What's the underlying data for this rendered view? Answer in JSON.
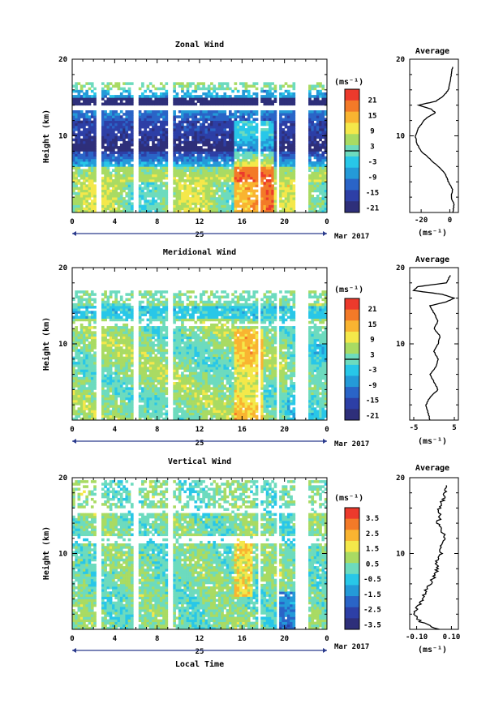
{
  "chart_data": [
    {
      "type": "heatmap",
      "title": "Zonal Wind",
      "ylabel": "Height (km)",
      "ylim": [
        0,
        20
      ],
      "yticks": [
        "10",
        "20"
      ],
      "xticks": [
        "0",
        "4",
        "8",
        "12",
        "16",
        "20",
        "0"
      ],
      "xlim": [
        0,
        24
      ],
      "date_day": "25",
      "date_month": "Mar 2017",
      "colorbar": {
        "unit": "(ms⁻¹)",
        "ticks": [
          "21",
          "15",
          "9",
          "3",
          "-3",
          "-9",
          "-15",
          "-21"
        ]
      },
      "average": {
        "title": "Average",
        "xticks": [
          "-20",
          "0"
        ],
        "xlim": [
          -28,
          6
        ],
        "xunit": "(ms⁻¹)",
        "heights": [
          0,
          1,
          2,
          3,
          4,
          4.5,
          5,
          6,
          7,
          8,
          9,
          10,
          11,
          12,
          12.5,
          13,
          13.5,
          14,
          14.5,
          15,
          15.5,
          16,
          17,
          18,
          19
        ],
        "values": [
          2,
          3,
          1,
          2,
          -1,
          -2,
          -3,
          -8,
          -14,
          -20,
          -23,
          -24,
          -22,
          -18,
          -15,
          -10,
          -13,
          -22,
          -10,
          -6,
          -3,
          -1,
          0,
          1,
          2
        ]
      }
    },
    {
      "type": "heatmap",
      "title": "Meridional Wind",
      "ylabel": "Height (km)",
      "ylim": [
        0,
        20
      ],
      "yticks": [
        "10",
        "20"
      ],
      "xticks": [
        "0",
        "4",
        "8",
        "12",
        "16",
        "20",
        "0"
      ],
      "xlim": [
        0,
        24
      ],
      "date_day": "25",
      "date_month": "Mar 2017",
      "colorbar": {
        "unit": "(ms⁻¹)",
        "ticks": [
          "21",
          "15",
          "9",
          "3",
          "-3",
          "-9",
          "-15",
          "-21"
        ]
      },
      "average": {
        "title": "Average",
        "xticks": [
          "-5",
          "5"
        ],
        "xlim": [
          -6,
          6
        ],
        "xunit": "(ms⁻¹)",
        "heights": [
          0,
          1,
          2,
          3,
          4,
          5,
          6,
          7,
          8,
          9,
          10,
          11,
          12,
          13,
          14,
          15,
          15.5,
          16,
          16.5,
          17,
          17.5,
          18,
          19
        ],
        "values": [
          -1,
          -1.5,
          -2,
          -1,
          1,
          0,
          -1,
          0.5,
          1,
          0,
          1,
          1.5,
          0,
          1,
          0,
          -1,
          3,
          5,
          2,
          -5,
          -4,
          3,
          4
        ]
      }
    },
    {
      "type": "heatmap",
      "title": "Vertical Wind",
      "ylabel": "Height (km)",
      "ylim": [
        0,
        20
      ],
      "yticks": [
        "10",
        "20"
      ],
      "xticks": [
        "0",
        "4",
        "8",
        "12",
        "16",
        "20",
        "0"
      ],
      "xlim": [
        0,
        24
      ],
      "date_day": "25",
      "date_month": "Mar 2017",
      "xlabel": "Local Time",
      "colorbar": {
        "unit": "(ms⁻¹)",
        "ticks": [
          "3.5",
          "2.5",
          "1.5",
          "0.5",
          "-0.5",
          "-1.5",
          "-2.5",
          "-3.5"
        ]
      },
      "average": {
        "title": "Average",
        "xticks": [
          "-0.10",
          "0.10"
        ],
        "xlim": [
          -0.14,
          0.14
        ],
        "xunit": "(ms⁻¹)",
        "heights": [
          0,
          1,
          2,
          3,
          4,
          5,
          6,
          7,
          8,
          9,
          10,
          11,
          12,
          13,
          14,
          15,
          16,
          17,
          18,
          19
        ],
        "values": [
          0.02,
          -0.08,
          -0.12,
          -0.09,
          -0.06,
          -0.05,
          -0.02,
          0.0,
          0.02,
          0.01,
          0.04,
          0.03,
          0.06,
          0.05,
          0.02,
          0.04,
          0.03,
          0.05,
          0.06,
          0.07
        ]
      }
    }
  ],
  "colors": {
    "cb_long": [
      "#ec3a2c",
      "#f37a28",
      "#f9b431",
      "#f4e84a",
      "#a9db63",
      "#6ddbbe",
      "#28c7e8",
      "#249ad8",
      "#2a64c7",
      "#2d3fa6",
      "#2e2f7a"
    ],
    "cb_vert": [
      "#ec3a2c",
      "#f37a28",
      "#f9b431",
      "#f4e84a",
      "#a9db63",
      "#6ddbbe",
      "#28c7e8",
      "#249ad8",
      "#2a64c7",
      "#2d3fa6",
      "#2e2f7a"
    ],
    "axis_blue": "#2a3a8c"
  }
}
